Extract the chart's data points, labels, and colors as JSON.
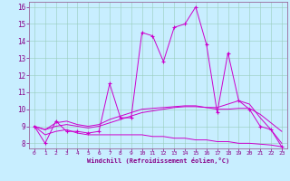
{
  "bg_color": "#c8eeff",
  "grid_color": "#99ccbb",
  "line_color": "#cc00cc",
  "xlim_min": -0.5,
  "xlim_max": 23.5,
  "ylim_min": 7.7,
  "ylim_max": 16.3,
  "xticks": [
    0,
    1,
    2,
    3,
    4,
    5,
    6,
    7,
    8,
    9,
    10,
    11,
    12,
    13,
    14,
    15,
    16,
    17,
    18,
    19,
    20,
    21,
    22,
    23
  ],
  "yticks": [
    8,
    9,
    10,
    11,
    12,
    13,
    14,
    15,
    16
  ],
  "xlabel": "Windchill (Refroidissement éolien,°C)",
  "curve1_x": [
    0,
    1,
    2,
    3,
    4,
    5,
    6,
    7,
    8,
    9,
    10,
    11,
    12,
    13,
    14,
    15,
    16,
    17,
    18,
    19,
    20,
    21,
    22,
    23
  ],
  "curve1_y": [
    9.0,
    8.0,
    9.3,
    8.7,
    8.7,
    8.6,
    8.7,
    11.5,
    9.5,
    9.5,
    14.5,
    14.3,
    12.8,
    14.8,
    15.0,
    16.0,
    13.8,
    9.8,
    13.3,
    10.5,
    10.0,
    9.0,
    8.8,
    7.8
  ],
  "curve2_x": [
    0,
    1,
    2,
    3,
    4,
    5,
    6,
    7,
    8,
    9,
    10,
    11,
    12,
    13,
    14,
    15,
    16,
    17,
    18,
    19,
    20,
    21,
    22,
    23
  ],
  "curve2_y": [
    9.0,
    8.8,
    9.0,
    9.1,
    9.0,
    8.9,
    9.0,
    9.2,
    9.4,
    9.6,
    9.8,
    9.9,
    10.0,
    10.1,
    10.15,
    10.15,
    10.1,
    10.0,
    10.0,
    10.05,
    10.05,
    9.7,
    9.2,
    8.7
  ],
  "curve3_x": [
    0,
    1,
    2,
    3,
    4,
    5,
    6,
    7,
    8,
    9,
    10,
    11,
    12,
    13,
    14,
    15,
    16,
    17,
    18,
    19,
    20,
    21,
    22,
    23
  ],
  "curve3_y": [
    9.0,
    8.5,
    8.7,
    8.8,
    8.6,
    8.5,
    8.5,
    8.5,
    8.5,
    8.5,
    8.5,
    8.4,
    8.4,
    8.3,
    8.3,
    8.2,
    8.2,
    8.1,
    8.1,
    8.0,
    8.0,
    7.95,
    7.9,
    7.8
  ],
  "curve4_x": [
    0,
    1,
    2,
    3,
    4,
    5,
    6,
    7,
    8,
    9,
    10,
    11,
    12,
    13,
    14,
    15,
    16,
    17,
    18,
    19,
    20,
    21,
    22,
    23
  ],
  "curve4_y": [
    9.0,
    8.8,
    9.2,
    9.3,
    9.1,
    9.0,
    9.1,
    9.4,
    9.6,
    9.8,
    10.0,
    10.05,
    10.1,
    10.15,
    10.2,
    10.2,
    10.1,
    10.1,
    10.3,
    10.5,
    10.3,
    9.5,
    8.8,
    8.0
  ]
}
